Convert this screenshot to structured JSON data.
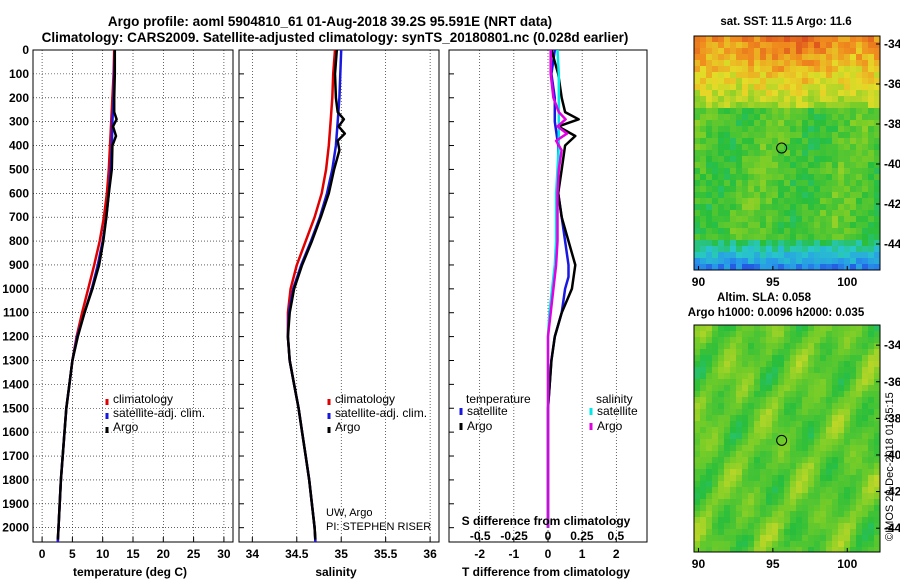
{
  "header": {
    "title_line1": "Argo profile: aoml 5904810_61 01-Aug-2018 39.2S 95.591E (NRT data)",
    "title_line2": "Climatology: CARS2009. Satellite-adjusted climatology: synTS_20180801.nc (0.028d earlier)"
  },
  "colors": {
    "climatology": "#e00000",
    "satellite": "#1818e0",
    "argo": "#000000",
    "sat_salinity": "#00e8e8",
    "argo_salinity": "#e000e0"
  },
  "chart_data": [
    {
      "type": "line",
      "name": "temperature-profile",
      "xlabel": "temperature (deg C)",
      "ylabel": "",
      "xlim": [
        -1.5,
        31.5
      ],
      "ylim": [
        2060,
        0
      ],
      "xticks": [
        0,
        5,
        10,
        15,
        20,
        25,
        30
      ],
      "yticks": [
        0,
        100,
        200,
        300,
        400,
        500,
        600,
        700,
        800,
        900,
        1000,
        1100,
        1200,
        1300,
        1400,
        1500,
        1600,
        1700,
        1800,
        1900,
        2000
      ],
      "legend": [
        "climatology",
        "satellite-adj. clim.",
        "Argo"
      ],
      "series": [
        {
          "name": "climatology",
          "points": [
            [
              11.9,
              0
            ],
            [
              11.8,
              100
            ],
            [
              11.6,
              200
            ],
            [
              11.4,
              300
            ],
            [
              11.2,
              400
            ],
            [
              11.0,
              500
            ],
            [
              10.7,
              600
            ],
            [
              10.2,
              700
            ],
            [
              9.5,
              800
            ],
            [
              8.6,
              900
            ],
            [
              7.6,
              1000
            ],
            [
              6.6,
              1100
            ],
            [
              5.7,
              1200
            ],
            [
              5.0,
              1300
            ],
            [
              4.5,
              1400
            ],
            [
              4.0,
              1500
            ],
            [
              3.7,
              1600
            ],
            [
              3.4,
              1700
            ],
            [
              3.1,
              1800
            ],
            [
              2.9,
              1900
            ],
            [
              2.7,
              2000
            ],
            [
              2.6,
              2060
            ]
          ]
        },
        {
          "name": "satellite-adj. clim.",
          "points": [
            [
              12.0,
              0
            ],
            [
              11.9,
              100
            ],
            [
              11.8,
              200
            ],
            [
              11.6,
              300
            ],
            [
              11.5,
              400
            ],
            [
              11.3,
              500
            ],
            [
              11.0,
              600
            ],
            [
              10.6,
              700
            ],
            [
              10.0,
              800
            ],
            [
              9.2,
              900
            ],
            [
              8.2,
              1000
            ],
            [
              7.0,
              1100
            ],
            [
              5.8,
              1200
            ],
            [
              5.0,
              1300
            ],
            [
              4.5,
              1400
            ],
            [
              4.0,
              1500
            ],
            [
              3.7,
              1600
            ],
            [
              3.4,
              1700
            ],
            [
              3.1,
              1800
            ],
            [
              2.9,
              1900
            ],
            [
              2.7,
              2000
            ],
            [
              2.6,
              2060
            ]
          ]
        },
        {
          "name": "Argo",
          "points": [
            [
              12.0,
              0
            ],
            [
              12.0,
              100
            ],
            [
              11.9,
              200
            ],
            [
              11.9,
              260
            ],
            [
              12.3,
              290
            ],
            [
              11.7,
              320
            ],
            [
              12.2,
              360
            ],
            [
              11.6,
              400
            ],
            [
              11.5,
              500
            ],
            [
              11.0,
              600
            ],
            [
              10.6,
              700
            ],
            [
              10.1,
              800
            ],
            [
              9.4,
              900
            ],
            [
              8.3,
              1000
            ],
            [
              7.0,
              1100
            ],
            [
              5.9,
              1200
            ],
            [
              5.0,
              1300
            ],
            [
              4.5,
              1400
            ],
            [
              4.0,
              1500
            ],
            [
              3.7,
              1600
            ],
            [
              3.4,
              1700
            ],
            [
              3.1,
              1800
            ],
            [
              2.9,
              1900
            ],
            [
              2.7,
              2000
            ],
            [
              2.6,
              2050
            ]
          ]
        }
      ]
    },
    {
      "type": "line",
      "name": "salinity-profile",
      "xlabel": "salinity",
      "xlim": [
        33.85,
        36.1
      ],
      "ylim": [
        2060,
        0
      ],
      "xticks": [
        34,
        34.5,
        35,
        35.5,
        36
      ],
      "legend": [
        "climatology",
        "satellite-adj. clim.",
        "Argo"
      ],
      "annotations": [
        "UW, Argo",
        "PI: STEPHEN RISER"
      ],
      "series": [
        {
          "name": "climatology",
          "points": [
            [
              34.93,
              0
            ],
            [
              34.91,
              100
            ],
            [
              34.9,
              200
            ],
            [
              34.88,
              300
            ],
            [
              34.86,
              400
            ],
            [
              34.83,
              500
            ],
            [
              34.78,
              600
            ],
            [
              34.7,
              700
            ],
            [
              34.6,
              800
            ],
            [
              34.5,
              900
            ],
            [
              34.43,
              1000
            ],
            [
              34.4,
              1100
            ],
            [
              34.4,
              1200
            ],
            [
              34.42,
              1300
            ],
            [
              34.47,
              1400
            ],
            [
              34.52,
              1500
            ],
            [
              34.56,
              1600
            ],
            [
              34.6,
              1700
            ],
            [
              34.64,
              1800
            ],
            [
              34.67,
              1900
            ],
            [
              34.7,
              2000
            ],
            [
              34.71,
              2060
            ]
          ]
        },
        {
          "name": "satellite-adj. clim.",
          "points": [
            [
              35.0,
              0
            ],
            [
              34.99,
              100
            ],
            [
              34.98,
              200
            ],
            [
              34.96,
              300
            ],
            [
              34.94,
              400
            ],
            [
              34.9,
              500
            ],
            [
              34.84,
              600
            ],
            [
              34.76,
              700
            ],
            [
              34.66,
              800
            ],
            [
              34.55,
              900
            ],
            [
              34.46,
              1000
            ],
            [
              34.41,
              1100
            ],
            [
              34.4,
              1200
            ],
            [
              34.42,
              1300
            ],
            [
              34.47,
              1400
            ],
            [
              34.52,
              1500
            ],
            [
              34.56,
              1600
            ],
            [
              34.6,
              1700
            ],
            [
              34.64,
              1800
            ],
            [
              34.67,
              1900
            ],
            [
              34.7,
              2000
            ],
            [
              34.71,
              2060
            ]
          ]
        },
        {
          "name": "Argo",
          "points": [
            [
              34.95,
              0
            ],
            [
              34.93,
              100
            ],
            [
              34.94,
              200
            ],
            [
              34.96,
              260
            ],
            [
              35.03,
              290
            ],
            [
              34.97,
              320
            ],
            [
              35.04,
              350
            ],
            [
              34.96,
              380
            ],
            [
              34.98,
              420
            ],
            [
              34.92,
              500
            ],
            [
              34.86,
              600
            ],
            [
              34.77,
              700
            ],
            [
              34.67,
              800
            ],
            [
              34.56,
              900
            ],
            [
              34.47,
              1000
            ],
            [
              34.42,
              1100
            ],
            [
              34.4,
              1200
            ],
            [
              34.42,
              1300
            ],
            [
              34.47,
              1400
            ],
            [
              34.52,
              1500
            ],
            [
              34.56,
              1600
            ],
            [
              34.6,
              1700
            ],
            [
              34.64,
              1800
            ],
            [
              34.67,
              1900
            ],
            [
              34.7,
              2000
            ],
            [
              34.71,
              2050
            ]
          ]
        }
      ]
    },
    {
      "type": "line",
      "name": "difference-profile",
      "xlabel": "T difference from climatology",
      "top_label": "S difference from climatology",
      "xlim": [
        -2.9,
        2.9
      ],
      "ylim": [
        2060,
        0
      ],
      "xticks": [
        -2,
        -1,
        0,
        1,
        2
      ],
      "xtick_labels": [
        "-2",
        "-1",
        "0",
        "1",
        "2"
      ],
      "s_ticks": [
        "-0.5",
        "-0.25",
        "0",
        "0.25",
        "0.5"
      ],
      "legend_temperature": [
        "temperature",
        "satellite",
        "Argo"
      ],
      "legend_salinity": [
        "salinity",
        "satellite",
        "Argo"
      ],
      "series": [
        {
          "name": "T satellite",
          "points": [
            [
              0.2,
              0
            ],
            [
              0.1,
              100
            ],
            [
              0.2,
              200
            ],
            [
              0.2,
              300
            ],
            [
              0.3,
              400
            ],
            [
              0.3,
              500
            ],
            [
              0.3,
              600
            ],
            [
              0.4,
              700
            ],
            [
              0.5,
              800
            ],
            [
              0.6,
              900
            ],
            [
              0.6,
              950
            ],
            [
              0.5,
              1000
            ],
            [
              0.4,
              1100
            ],
            [
              0.2,
              1200
            ],
            [
              0.1,
              1300
            ],
            [
              0.05,
              1400
            ],
            [
              0.0,
              1500
            ],
            [
              0.0,
              1600
            ],
            [
              0.0,
              1700
            ],
            [
              0.0,
              1800
            ],
            [
              0.0,
              1900
            ],
            [
              0.0,
              2000
            ]
          ]
        },
        {
          "name": "T Argo",
          "points": [
            [
              0.1,
              0
            ],
            [
              0.3,
              100
            ],
            [
              0.4,
              200
            ],
            [
              0.5,
              260
            ],
            [
              0.9,
              290
            ],
            [
              0.3,
              320
            ],
            [
              0.8,
              360
            ],
            [
              0.5,
              400
            ],
            [
              0.4,
              500
            ],
            [
              0.3,
              600
            ],
            [
              0.4,
              700
            ],
            [
              0.6,
              800
            ],
            [
              0.8,
              900
            ],
            [
              0.7,
              1000
            ],
            [
              0.4,
              1100
            ],
            [
              0.2,
              1200
            ],
            [
              0.1,
              1300
            ],
            [
              0.05,
              1400
            ],
            [
              0.0,
              1500
            ],
            [
              0.0,
              1600
            ],
            [
              0.0,
              1700
            ],
            [
              0.0,
              1800
            ],
            [
              0.0,
              1900
            ],
            [
              0.0,
              2000
            ]
          ]
        },
        {
          "name": "S satellite",
          "points": [
            [
              0.07,
              0
            ],
            [
              0.08,
              100
            ],
            [
              0.08,
              200
            ],
            [
              0.08,
              300
            ],
            [
              0.08,
              400
            ],
            [
              0.07,
              500
            ],
            [
              0.06,
              600
            ],
            [
              0.06,
              700
            ],
            [
              0.06,
              800
            ],
            [
              0.05,
              900
            ],
            [
              0.03,
              1000
            ],
            [
              0.01,
              1100
            ],
            [
              0.0,
              1200
            ],
            [
              0.0,
              1300
            ],
            [
              0.0,
              1400
            ],
            [
              0.0,
              1500
            ],
            [
              0.0,
              1600
            ],
            [
              0.0,
              1700
            ],
            [
              0.0,
              1800
            ],
            [
              0.0,
              1900
            ],
            [
              0.0,
              2000
            ]
          ]
        },
        {
          "name": "S Argo",
          "points": [
            [
              0.02,
              0
            ],
            [
              0.02,
              100
            ],
            [
              0.04,
              200
            ],
            [
              0.08,
              260
            ],
            [
              0.13,
              290
            ],
            [
              0.07,
              320
            ],
            [
              0.14,
              350
            ],
            [
              0.06,
              380
            ],
            [
              0.1,
              420
            ],
            [
              0.08,
              500
            ],
            [
              0.07,
              600
            ],
            [
              0.07,
              700
            ],
            [
              0.07,
              800
            ],
            [
              0.06,
              900
            ],
            [
              0.04,
              1000
            ],
            [
              0.02,
              1100
            ],
            [
              0.0,
              1200
            ],
            [
              0.0,
              1300
            ],
            [
              0.0,
              1400
            ],
            [
              0.0,
              1500
            ],
            [
              0.0,
              1600
            ],
            [
              0.0,
              1700
            ],
            [
              0.0,
              1800
            ],
            [
              0.0,
              1900
            ],
            [
              0.0,
              2000
            ]
          ]
        }
      ]
    },
    {
      "type": "heatmap",
      "name": "sst-map",
      "title": "sat. SST: 11.5 Argo: 11.6",
      "xlim": [
        89.7,
        102.2
      ],
      "ylim": [
        -45.3,
        -33.6
      ],
      "xticks": [
        90,
        95,
        100
      ],
      "yticks": [
        -34,
        -36,
        -38,
        -40,
        -42,
        -44
      ],
      "marker": [
        95.59,
        -39.2
      ]
    },
    {
      "type": "heatmap",
      "name": "sla-map",
      "title_line1": "Altim. SLA: 0.058",
      "title_line2": "Argo h1000: 0.0096 h2000: 0.035",
      "xlim": [
        89.7,
        102.2
      ],
      "ylim": [
        -45.3,
        -32.9
      ],
      "xticks": [
        90,
        95,
        100
      ],
      "yticks": [
        -34,
        -36,
        -38,
        -40,
        -42,
        -44
      ],
      "marker": [
        95.59,
        -39.2
      ]
    }
  ],
  "footer": {
    "credit": "©IMOS 20-Dec-2018 01:35:15"
  }
}
